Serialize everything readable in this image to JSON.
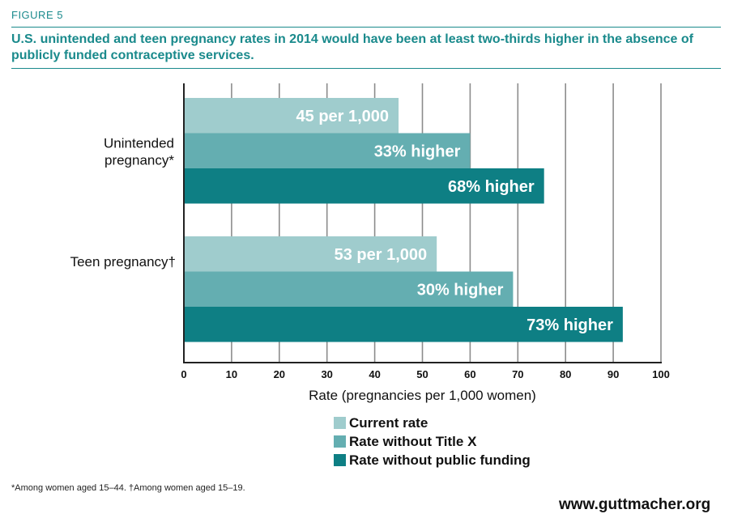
{
  "figure_label": "FIGURE 5",
  "title": "U.S. unintended and teen pregnancy rates in 2014 would have been at least two-thirds higher in the absence of publicly funded contraceptive services.",
  "footnote": "*Among women aged 15–44. †Among women aged 15–19.",
  "website": "www.guttmacher.org",
  "colors": {
    "accent": "#1a8a8c",
    "current": "#9fcccd",
    "without_title_x": "#64aeb1",
    "without_public_funding": "#0e7f84"
  },
  "chart_data": {
    "type": "bar",
    "orientation": "horizontal",
    "categories": [
      "Unintended pregnancy*",
      "Teen pregnancy†"
    ],
    "series": [
      {
        "name": "Current rate",
        "values": [
          45,
          53
        ],
        "labels": [
          "45 per 1,000",
          "53 per 1,000"
        ]
      },
      {
        "name": "Rate without Title X",
        "values": [
          60,
          69
        ],
        "labels": [
          "33% higher",
          "30% higher"
        ]
      },
      {
        "name": "Rate without public funding",
        "values": [
          75.5,
          92
        ],
        "labels": [
          "68% higher",
          "73% higher"
        ]
      }
    ],
    "xlabel": "Rate (pregnancies per 1,000 women)",
    "xlim": [
      0,
      100
    ],
    "xticks": [
      "0",
      "10",
      "20",
      "30",
      "40",
      "50",
      "60",
      "70",
      "80",
      "90",
      "100"
    ],
    "grid": "vertical",
    "legend_position": "bottom"
  }
}
